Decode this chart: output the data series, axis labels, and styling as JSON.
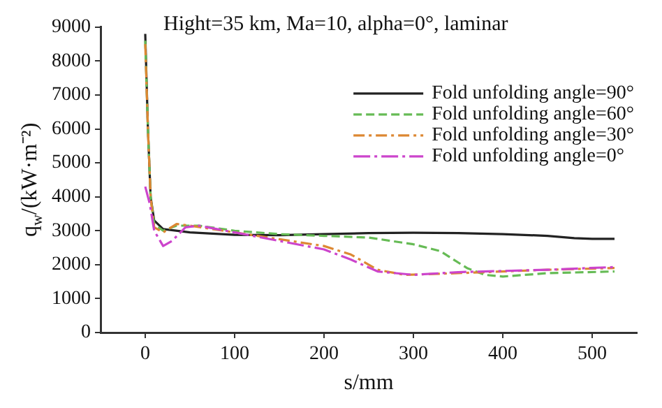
{
  "chart_data": {
    "type": "line",
    "title": "Hight=35 km, Ma=10, alpha=0°, laminar",
    "xlabel": "s/mm",
    "ylabel": "q$_{w}$/(kW·m⁻²)",
    "xlim": [
      -50,
      550
    ],
    "xticks": [
      0,
      100,
      200,
      300,
      400,
      500
    ],
    "ylim": [
      0,
      9000
    ],
    "yticks": [
      0,
      1000,
      2000,
      3000,
      4000,
      5000,
      6000,
      7000,
      8000,
      9000
    ],
    "grid": false,
    "legend": "top right",
    "marker": "none",
    "series": [
      {
        "name": "Fold unfolding angle=90°",
        "color": "#222222",
        "line_style": "solid",
        "x": [
          0,
          3,
          6,
          10,
          20,
          50,
          100,
          150,
          200,
          250,
          300,
          350,
          400,
          450,
          480,
          500,
          525
        ],
        "values": [
          8800,
          6000,
          4000,
          3300,
          3050,
          2950,
          2880,
          2870,
          2900,
          2930,
          2940,
          2930,
          2900,
          2850,
          2780,
          2760,
          2760
        ]
      },
      {
        "name": "Fold unfolding angle=60°",
        "color": "#66bb55",
        "line_style": "dashed",
        "x": [
          0,
          3,
          6,
          10,
          20,
          35,
          60,
          100,
          150,
          200,
          250,
          300,
          330,
          360,
          380,
          400,
          450,
          525
        ],
        "values": [
          8600,
          6000,
          4000,
          3200,
          3000,
          3150,
          3150,
          3000,
          2900,
          2850,
          2800,
          2600,
          2400,
          1900,
          1700,
          1650,
          1750,
          1800
        ]
      },
      {
        "name": "Fold unfolding angle=30°",
        "color": "#dd8833",
        "line_style": "dashdot",
        "x": [
          0,
          3,
          6,
          10,
          20,
          35,
          50,
          100,
          150,
          200,
          230,
          260,
          290,
          350,
          450,
          525
        ],
        "values": [
          8500,
          6000,
          4000,
          3100,
          2950,
          3200,
          3150,
          2950,
          2750,
          2550,
          2300,
          1850,
          1700,
          1750,
          1850,
          1900
        ]
      },
      {
        "name": "Fold unfolding angle=0°",
        "color": "#cc44cc",
        "line_style": "longdashdot",
        "x": [
          0,
          5,
          10,
          20,
          30,
          45,
          60,
          100,
          150,
          200,
          230,
          260,
          300,
          350,
          450,
          525
        ],
        "values": [
          4300,
          3800,
          3000,
          2550,
          2700,
          3100,
          3150,
          2950,
          2700,
          2450,
          2150,
          1800,
          1700,
          1780,
          1850,
          1930
        ]
      }
    ]
  }
}
